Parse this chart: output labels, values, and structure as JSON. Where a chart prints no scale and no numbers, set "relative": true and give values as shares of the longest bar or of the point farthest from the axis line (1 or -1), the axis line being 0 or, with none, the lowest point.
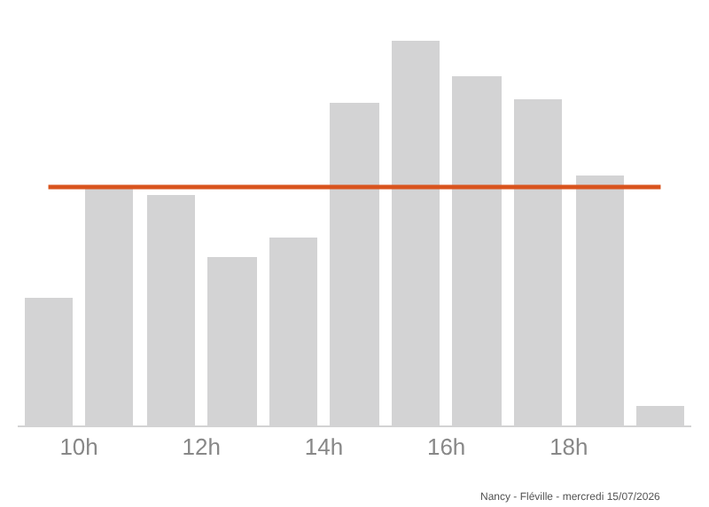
{
  "chart_data": {
    "type": "bar",
    "relative": true,
    "x": [
      9.5,
      10.5,
      11.5,
      12.5,
      13.5,
      14.5,
      15.5,
      16.5,
      17.5,
      18.5,
      19.5
    ],
    "values": [
      0.33,
      0.62,
      0.6,
      0.44,
      0.49,
      0.84,
      1,
      0.91,
      0.85,
      0.65,
      0.05
    ],
    "color": "#d3d3d4",
    "xlim": [
      9,
      20
    ],
    "xticks": [
      {
        "value": 10,
        "label": "10h"
      },
      {
        "value": 12,
        "label": "12h"
      },
      {
        "value": 14,
        "label": "14h"
      },
      {
        "value": 16,
        "label": "16h"
      },
      {
        "value": 18,
        "label": "18h"
      }
    ],
    "ref_lines": [
      {
        "axis": "y",
        "value": 0.62,
        "color": "#d9541e"
      }
    ],
    "annotations": [
      "Nancy - Fléville - mercredi 15/07/2026"
    ]
  }
}
